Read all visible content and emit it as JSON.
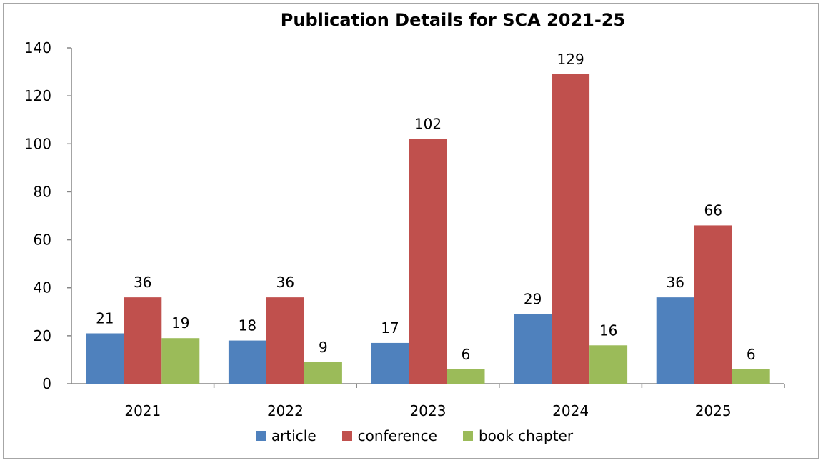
{
  "chart_data": {
    "type": "bar",
    "title": "Publication Details for SCA 2021-25",
    "categories": [
      "2021",
      "2022",
      "2023",
      "2024",
      "2025"
    ],
    "series": [
      {
        "name": "article",
        "color": "#4f81bd",
        "values": [
          21,
          18,
          17,
          29,
          36
        ]
      },
      {
        "name": "conference",
        "color": "#c0504d",
        "values": [
          36,
          36,
          102,
          129,
          66
        ]
      },
      {
        "name": "book chapter",
        "color": "#9bbb59",
        "values": [
          19,
          9,
          6,
          16,
          6
        ]
      }
    ],
    "ylim": [
      0,
      140
    ],
    "yticks": [
      "0",
      "20",
      "40",
      "60",
      "80",
      "100",
      "120",
      "140"
    ],
    "grid": false,
    "legend_position": "bottom"
  }
}
